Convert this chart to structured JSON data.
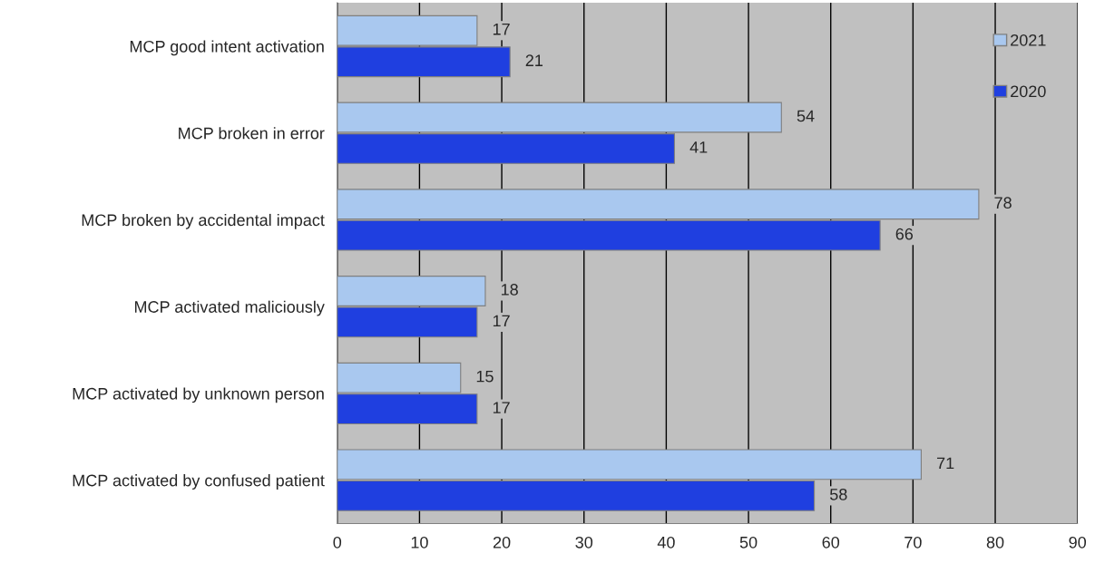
{
  "chart_data": {
    "type": "bar",
    "orientation": "horizontal",
    "categories": [
      "MCP good intent activation",
      "MCP broken in error",
      "MCP broken by accidental impact",
      "MCP activated maliciously",
      "MCP activated by unknown person",
      "MCP activated by confused patient"
    ],
    "series": [
      {
        "name": "2021",
        "color": "#a9c8ef",
        "values": [
          17,
          54,
          78,
          18,
          15,
          71
        ]
      },
      {
        "name": "2020",
        "color": "#1f3fe0",
        "values": [
          21,
          41,
          66,
          17,
          17,
          58
        ]
      }
    ],
    "xlim": [
      0,
      90
    ],
    "xticks": [
      0,
      10,
      20,
      30,
      40,
      50,
      60,
      70,
      80,
      90
    ],
    "grid": "x",
    "legend": "top right",
    "data_labels": true
  }
}
